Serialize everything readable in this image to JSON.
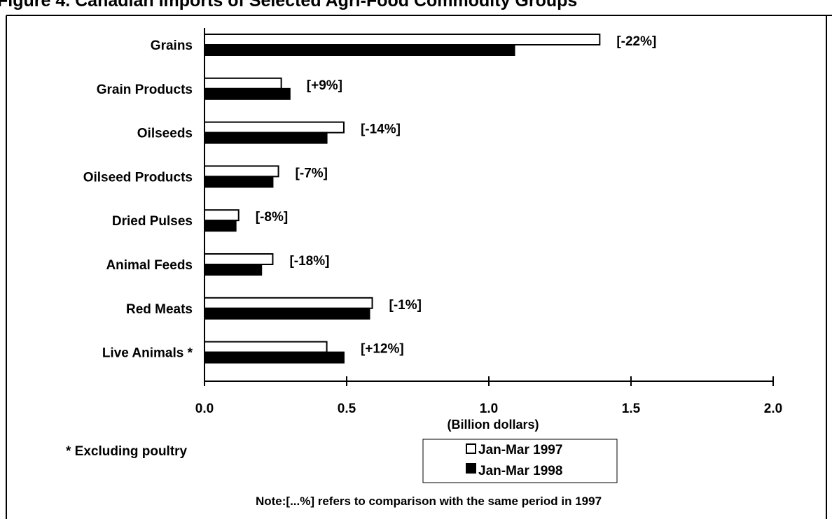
{
  "chart_data": {
    "type": "bar",
    "orientation": "horizontal",
    "title": "Figure 4. Canadian Imports of Selected Agri-Food Commodity Groups",
    "categories": [
      "Grains",
      "Grain Products",
      "Oilseeds",
      "Oilseed Products",
      "Dried Pulses",
      "Animal Feeds",
      "Red Meats",
      "Live Animals *"
    ],
    "series": [
      {
        "name": "Jan-Mar 1997",
        "color": "#ffffff",
        "values": [
          1.39,
          0.27,
          0.49,
          0.26,
          0.12,
          0.24,
          0.59,
          0.43
        ]
      },
      {
        "name": "Jan-Mar 1998",
        "color": "#000000",
        "values": [
          1.09,
          0.3,
          0.43,
          0.24,
          0.11,
          0.2,
          0.58,
          0.49
        ]
      }
    ],
    "change_labels": [
      "[-22%]",
      "[+9%]",
      "[-14%]",
      "[-7%]",
      "[-8%]",
      "[-18%]",
      "[-1%]",
      "[+12%]"
    ],
    "xlabel": "(Billion dollars)",
    "xlim": [
      0,
      2.0
    ],
    "xticks": [
      "0.0",
      "0.5",
      "1.0",
      "1.5",
      "2.0"
    ],
    "grid": false,
    "legend_position": "bottom-center",
    "footnote": "* Excluding poultry",
    "note": "Note:[...%] refers to comparison with the same period in 1997"
  }
}
